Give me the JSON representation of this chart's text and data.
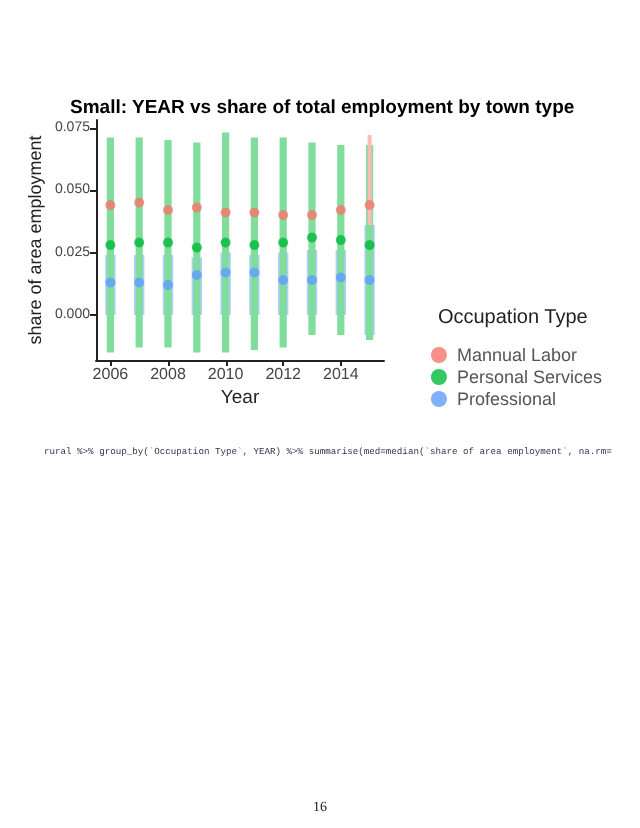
{
  "chart_data": {
    "type": "scatter",
    "title": "Small: YEAR vs share of total employment by town type",
    "xlabel": "Year",
    "ylabel": "share of area employment",
    "legend_title": "Occupation Type",
    "x": [
      2006,
      2007,
      2008,
      2009,
      2010,
      2011,
      2012,
      2013,
      2014,
      2015
    ],
    "series": [
      {
        "name": "Mannual Labor",
        "color": "#f8766d",
        "values": [
          0.044,
          0.045,
          0.042,
          0.043,
          0.041,
          0.041,
          0.04,
          0.04,
          0.042,
          0.044
        ],
        "errors": [
          null,
          null,
          null,
          null,
          null,
          null,
          null,
          null,
          null,
          [
            0.036,
            0.072
          ]
        ]
      },
      {
        "name": "Personal Services",
        "color": "#00ba38",
        "values": [
          0.028,
          0.029,
          0.029,
          0.027,
          0.029,
          0.028,
          0.029,
          0.031,
          0.03,
          0.028
        ],
        "errors": [
          [
            -0.015,
            0.071
          ],
          [
            -0.013,
            0.071
          ],
          [
            -0.013,
            0.07
          ],
          [
            -0.015,
            0.069
          ],
          [
            -0.015,
            0.073
          ],
          [
            -0.014,
            0.071
          ],
          [
            -0.013,
            0.071
          ],
          [
            -0.008,
            0.069
          ],
          [
            -0.008,
            0.068
          ],
          [
            -0.01,
            0.068
          ]
        ]
      },
      {
        "name": "Professional",
        "color": "#619cff",
        "values": [
          0.013,
          0.013,
          0.012,
          0.016,
          0.017,
          0.017,
          0.014,
          0.014,
          0.015,
          0.014
        ],
        "errors": [
          [
            0.0,
            0.024
          ],
          [
            0.0,
            0.024
          ],
          [
            0.0,
            0.024
          ],
          [
            0.0,
            0.023
          ],
          [
            0.0,
            0.025
          ],
          [
            0.0,
            0.024
          ],
          [
            0.0,
            0.025
          ],
          [
            0.0,
            0.026
          ],
          [
            0.0,
            0.026
          ],
          [
            -0.008,
            0.036
          ]
        ]
      }
    ],
    "xlim": [
      2005.5,
      2015.5
    ],
    "xticks": [
      2006,
      2008,
      2010,
      2012,
      2014
    ],
    "ylim": [
      -0.018,
      0.078
    ],
    "yticks": [
      {
        "value": 0,
        "label": "0.000"
      },
      {
        "value": 0.025,
        "label": "0.025"
      },
      {
        "value": 0.05,
        "label": "0.050"
      },
      {
        "value": 0.075,
        "label": "0.075"
      }
    ],
    "grid": false,
    "legend": "right",
    "marker": "circle",
    "annotations": [
      "rural %>% group_by(`Occupation Type`, YEAR) %>% summarise(med=median(`share of area employment`, na.rm=",
      "16"
    ]
  }
}
